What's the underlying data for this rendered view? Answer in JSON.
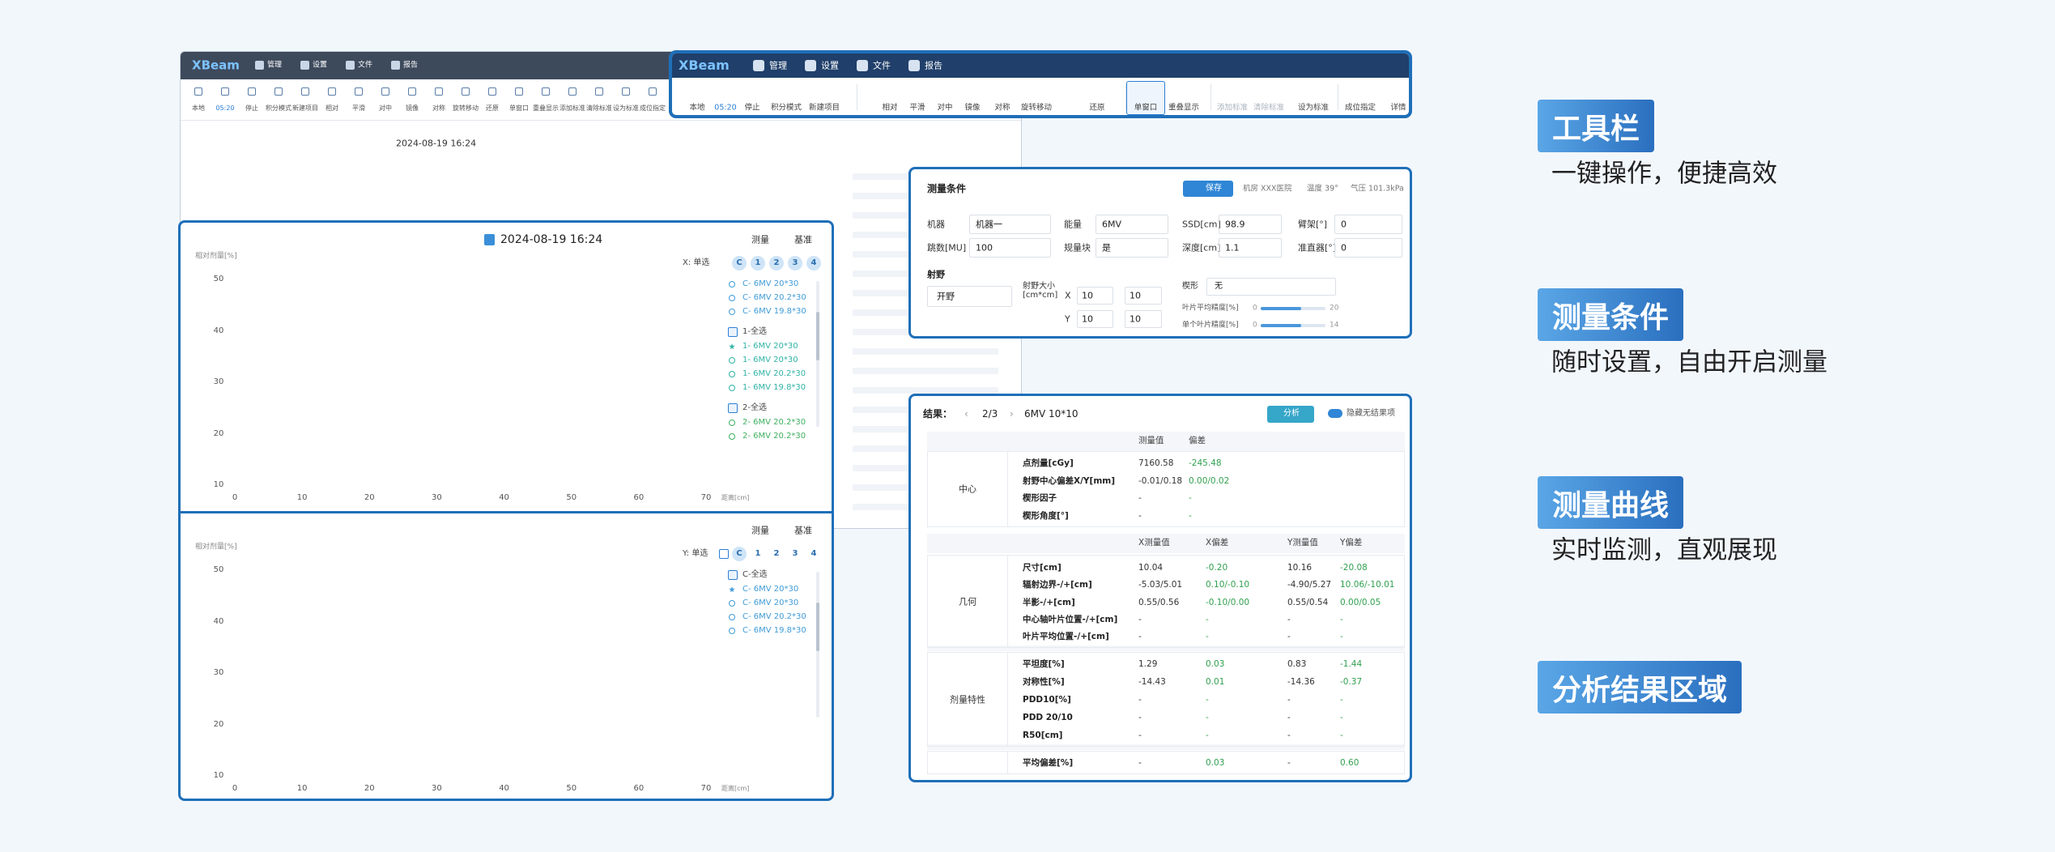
{
  "toolbar": {
    "brand": "XBeam",
    "menu": [
      "管理",
      "设置",
      "文件",
      "报告"
    ],
    "time": "05:20",
    "active_tool": 12,
    "tools": [
      "本地",
      "05:20",
      "停止",
      "积分模式",
      "新建项目",
      "相对",
      "平滑",
      "对中",
      "镜像",
      "对称",
      "旋转移动",
      "还原",
      "单窗口",
      "重叠显示",
      "添加标准",
      "清除标准",
      "设为标准",
      "成位指定",
      "详情"
    ]
  },
  "chart1": {
    "title": "2024-08-19 16:24",
    "legend": [
      "测量",
      "基准"
    ],
    "y_label": "相对剂量[%]",
    "x_label": "距离[cm]",
    "mode": "X: 单选",
    "channels": [
      "C",
      "1",
      "2",
      "3",
      "4"
    ],
    "circled": 5,
    "yticks": [
      "50",
      "40",
      "30",
      "20",
      "10"
    ],
    "xticks": [
      "0",
      "10",
      "20",
      "30",
      "40",
      "50",
      "60",
      "70"
    ],
    "groups": [
      {
        "color": "#3f9bd6",
        "items": [
          "C- 6MV 20*30",
          "C- 6MV 20.2*30",
          "C- 6MV 19.8*30"
        ]
      },
      {
        "name": "1-全选",
        "color": "#2fb3a6",
        "starred": 0,
        "items": [
          "1- 6MV 20*30",
          "1- 6MV 20*30",
          "1- 6MV 20.2*30",
          "1- 6MV 19.8*30"
        ]
      },
      {
        "name": "2-全选",
        "color": "#3fb060",
        "items": [
          "2- 6MV 20.2*30",
          "2- 6MV 20.2*30"
        ]
      }
    ]
  },
  "chart2": {
    "legend": [
      "测量",
      "基准"
    ],
    "y_label": "相对剂量[%]",
    "x_label": "距离[cm]",
    "mode": "Y: 单选",
    "channels": [
      "C",
      "1",
      "2",
      "3",
      "4"
    ],
    "circled": 1,
    "yticks": [
      "50",
      "40",
      "30",
      "20",
      "10"
    ],
    "xticks": [
      "0",
      "10",
      "20",
      "30",
      "40",
      "50",
      "60",
      "70"
    ],
    "groups": [
      {
        "name": "C-全选",
        "color": "#3f9bd6",
        "starred": 0,
        "items": [
          "C- 6MV 20*30",
          "C- 6MV 20*30",
          "C- 6MV 20.2*30",
          "C- 6MV 19.8*30"
        ]
      }
    ]
  },
  "conditions": {
    "title": "测量条件",
    "save": "保存",
    "info": [
      "机房 XXX医院",
      "温度 39°",
      "气压 101.3kPa"
    ],
    "fields": [
      [
        "机器",
        "机器一"
      ],
      [
        "能量",
        "6MV"
      ],
      [
        "SSD[cm]",
        "98.9"
      ],
      [
        "臂架[°]",
        "0"
      ],
      [
        "跳数[MU]",
        "100"
      ],
      [
        "规量块",
        "是"
      ],
      [
        "深度[cm]",
        "1.1"
      ],
      [
        "准直器[°]",
        "0"
      ]
    ],
    "field_section": "射野",
    "field_type": "开野",
    "size_label": "射野大小[cm*cm]",
    "x_axis": "X",
    "y_axis": "Y",
    "size_x": [
      "10",
      "10"
    ],
    "size_y": [
      "10",
      "10"
    ],
    "wedge_label": "楔形",
    "wedge": "无",
    "sliders": [
      {
        "label": "叶片平均精度[%]",
        "min": "0",
        "max": "20"
      },
      {
        "label": "单个叶片精度[%]",
        "min": "0",
        "max": "14"
      }
    ]
  },
  "results": {
    "title": "结果：",
    "page": "2/3",
    "beam": "6MV 10*10",
    "analyze": "分析",
    "hide": "隐藏无结果项",
    "sections": [
      {
        "name": "中心",
        "columns": [
          "测量值",
          "偏差"
        ],
        "rows": [
          {
            "label": "点剂量[cGy]",
            "cells": [
              "7160.58",
              "-245.48"
            ]
          },
          {
            "label": "射野中心偏差X/Y[mm]",
            "cells": [
              "-0.01/0.18",
              "0.00/0.02"
            ]
          },
          {
            "label": "楔形因子",
            "cells": [
              "-",
              "-"
            ]
          },
          {
            "label": "楔形角度[°]",
            "cells": [
              "-",
              "-"
            ]
          }
        ]
      },
      {
        "name": "几何",
        "columns": [
          "X测量值",
          "X偏差",
          "Y测量值",
          "Y偏差"
        ],
        "rows": [
          {
            "label": "尺寸[cm]",
            "cells": [
              "10.04",
              "-0.20",
              "10.16",
              "-20.08"
            ]
          },
          {
            "label": "辐射边界-/+[cm]",
            "cells": [
              "-5.03/5.01",
              "0.10/-0.10",
              "-4.90/5.27",
              "10.06/-10.01"
            ]
          },
          {
            "label": "半影-/+[cm]",
            "cells": [
              "0.55/0.56",
              "-0.10/0.00",
              "0.55/0.54",
              "0.00/0.05"
            ]
          },
          {
            "label": "中心轴叶片位置-/+[cm]",
            "cells": [
              "-",
              "-",
              "-",
              "-"
            ]
          },
          {
            "label": "叶片平均位置-/+[cm]",
            "cells": [
              "-",
              "-",
              "-",
              "-"
            ]
          }
        ]
      },
      {
        "name": "剂量特性",
        "rows": [
          {
            "label": "平坦度[%]",
            "cells": [
              "1.29",
              "0.03",
              "0.83",
              "-1.44"
            ]
          },
          {
            "label": "对称性[%]",
            "cells": [
              "-14.43",
              "0.01",
              "-14.36",
              "-0.37"
            ]
          },
          {
            "label": "PDD10[%]",
            "cells": [
              "-",
              "-",
              "-",
              "-"
            ]
          },
          {
            "label": "PDD 20/10",
            "cells": [
              "-",
              "-",
              "-",
              "-"
            ]
          },
          {
            "label": "R50[cm]",
            "cells": [
              "-",
              "-",
              "-",
              "-"
            ]
          }
        ]
      },
      {
        "rows": [
          {
            "label": "平均偏差[%]",
            "cells": [
              "-",
              "0.03",
              "-",
              "0.60"
            ]
          }
        ]
      }
    ]
  },
  "callouts": [
    {
      "title": "工具栏",
      "text": "一键操作，便捷高效"
    },
    {
      "title": "测量条件",
      "text": "随时设置，自由开启测量"
    },
    {
      "title": "测量曲线",
      "text": "实时监测，直观展现"
    },
    {
      "title": "分析结果区域"
    }
  ]
}
